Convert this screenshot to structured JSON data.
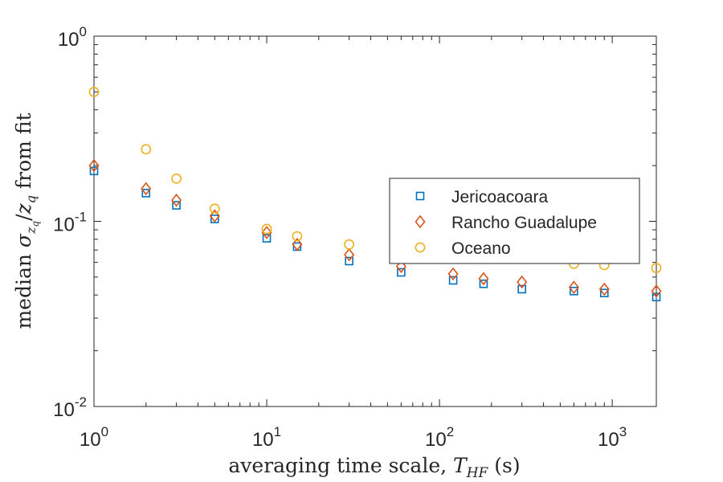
{
  "chart_data": {
    "type": "scatter",
    "xscale": "log",
    "yscale": "log",
    "xlim": [
      1,
      1800
    ],
    "ylim": [
      0.01,
      1
    ],
    "xticks": [
      {
        "value": 1,
        "base": "10",
        "exp": "0"
      },
      {
        "value": 10,
        "base": "10",
        "exp": "1"
      },
      {
        "value": 100,
        "base": "10",
        "exp": "2"
      },
      {
        "value": 1000,
        "base": "10",
        "exp": "3"
      }
    ],
    "yticks": [
      {
        "value": 0.01,
        "base": "10",
        "exp": "-2"
      },
      {
        "value": 0.1,
        "base": "10",
        "exp": "-1"
      },
      {
        "value": 1,
        "base": "10",
        "exp": "0"
      }
    ],
    "xlabel": {
      "prefix": "averaging time scale, ",
      "symbol": "T",
      "subscript": "HF",
      "suffix": " (s)"
    },
    "ylabel": {
      "prefix": "median ",
      "symbol": "σ",
      "sub_symbol": "z",
      "sub_sub": "q",
      "middle": "/",
      "symbol2": "z",
      "sub2": "q",
      "suffix": " from fit"
    },
    "grid": false,
    "legend_position": "right",
    "x": [
      1,
      2,
      3,
      5,
      10,
      15,
      30,
      60,
      120,
      180,
      300,
      600,
      900,
      1800
    ],
    "series": [
      {
        "name": "Jericoacoara",
        "marker": "square",
        "color": "#0072BD",
        "values": [
          0.187,
          0.142,
          0.122,
          0.103,
          0.081,
          0.073,
          0.061,
          0.053,
          0.048,
          0.046,
          0.043,
          0.042,
          0.041,
          0.039
        ]
      },
      {
        "name": "Rancho Guadalupe",
        "marker": "diamond",
        "color": "#D95319",
        "values": [
          0.2,
          0.15,
          0.13,
          0.107,
          0.087,
          0.075,
          0.066,
          0.057,
          0.052,
          0.049,
          0.047,
          0.044,
          0.043,
          0.042
        ]
      },
      {
        "name": "Oceano",
        "marker": "circle",
        "color": "#EDB120",
        "values": [
          0.5,
          0.245,
          0.17,
          0.117,
          0.091,
          0.083,
          0.075,
          0.068,
          0.066,
          0.065,
          0.064,
          0.059,
          0.058,
          0.056
        ]
      }
    ]
  }
}
